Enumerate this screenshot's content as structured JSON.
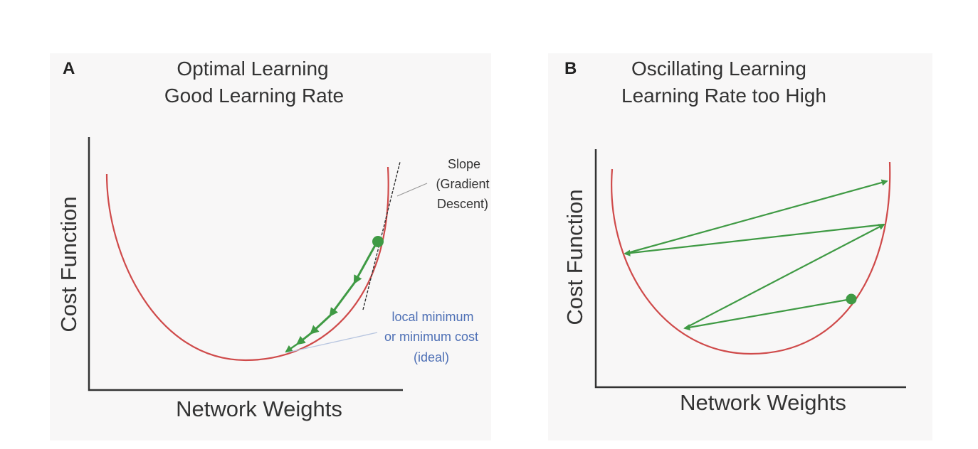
{
  "colors": {
    "background": "#ffffff",
    "panel_background": "#f8f7f7",
    "curve": "#cf4a4a",
    "arrow": "#3f9a44",
    "axis": "#333333",
    "text": "#333333",
    "annotation_blue": "#4d6fb5",
    "annotation_dark": "#333333",
    "slope_line": "#333333"
  },
  "panel_a": {
    "letter": "A",
    "title_line1": "Optimal Learning",
    "title_line2": "Good Learning Rate",
    "x_label": "Network Weights",
    "y_label": "Cost Function",
    "slope_note": [
      "Slope",
      "(Gradient",
      "Descent)"
    ],
    "minimum_note": [
      "local minimum",
      "or minimum cost",
      "(ideal)"
    ]
  },
  "panel_b": {
    "letter": "B",
    "title_line1": "Oscillating Learning",
    "title_line2": "Learning Rate too High",
    "x_label": "Network Weights",
    "y_label": "Cost Function"
  }
}
